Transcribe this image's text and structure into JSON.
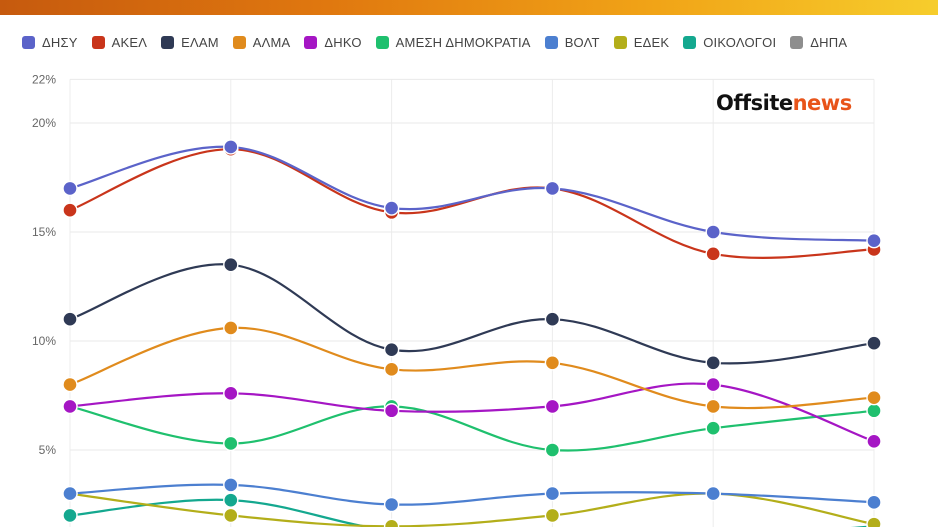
{
  "logo": {
    "part1": "Offsite",
    "part2": "news"
  },
  "chart_data": {
    "type": "line",
    "ylim": [
      0,
      22
    ],
    "yticks": [
      {
        "value": 5,
        "label": "5%"
      },
      {
        "value": 10,
        "label": "10%"
      },
      {
        "value": 15,
        "label": "15%"
      },
      {
        "value": 20,
        "label": "20%"
      },
      {
        "value": 22,
        "label": "22%"
      }
    ],
    "x": [
      1,
      2,
      3,
      4,
      5,
      6
    ],
    "grid": true,
    "legend": "top",
    "series": [
      {
        "name": "ΔΗΣΥ",
        "color": "#5b63c9",
        "values": [
          17,
          18.9,
          16.1,
          17,
          15,
          14.6
        ]
      },
      {
        "name": "ΑΚΕΛ",
        "color": "#c9351b",
        "values": [
          16,
          18.8,
          15.9,
          17,
          14,
          14.2
        ]
      },
      {
        "name": "ΕΛΑΜ",
        "color": "#2f3a55",
        "values": [
          11,
          13.5,
          9.6,
          11,
          9,
          9.9
        ]
      },
      {
        "name": "ΑΛΜΑ",
        "color": "#e08b1d",
        "values": [
          8,
          10.6,
          8.7,
          9,
          7,
          7.4
        ]
      },
      {
        "name": "ΔΗΚΟ",
        "color": "#a516c4",
        "values": [
          7,
          7.6,
          6.8,
          7,
          8,
          5.4
        ]
      },
      {
        "name": "ΑΜΕΣΗ ΔΗΜΟΚΡΑΤΙΑ",
        "color": "#1fc06e",
        "values": [
          7,
          5.3,
          7,
          5,
          6,
          6.8
        ]
      },
      {
        "name": "ΒΟΛΤ",
        "color": "#4c7fd0",
        "values": [
          3,
          3.4,
          2.5,
          3,
          3,
          2.6
        ]
      },
      {
        "name": "ΕΔΕΚ",
        "color": "#b3ae1a",
        "values": [
          3,
          2,
          1.5,
          2,
          3,
          1.6
        ]
      },
      {
        "name": "ΟΙΚΟΛΟΓΟΙ",
        "color": "#14a88f",
        "values": [
          2,
          2.7,
          1.3,
          1,
          1,
          1.5
        ]
      },
      {
        "name": "ΔΗΠΑ",
        "color": "#8e8e8e",
        "values": [
          null,
          null,
          null,
          null,
          null,
          null
        ]
      }
    ]
  }
}
